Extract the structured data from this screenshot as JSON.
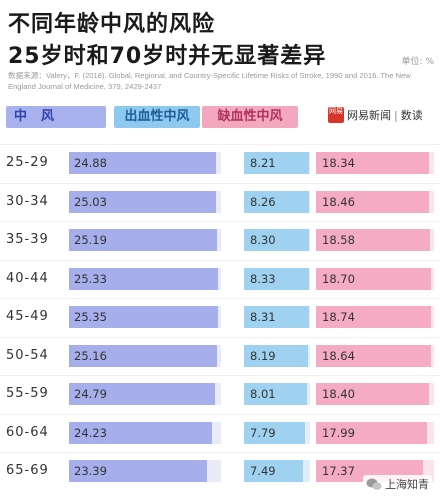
{
  "title_line1": "不同年龄中风的风险",
  "title_line2": "25岁时和70岁时并无显著差异",
  "unit": "单位: %",
  "source": "数据来源：Valery，F. (2018). Global, Regional, and Country-Specific Lifetime Risks of Stroke, 1990 and 2016. The New England Journal of Medicine, 379, 2429-2437",
  "headers": {
    "total": "中风",
    "hemorrhagic": "出血性中风",
    "ischemic": "缺血性中风"
  },
  "logo": {
    "badge": "网易",
    "name": "网易新闻",
    "column": "数读"
  },
  "watermark": "上海知青",
  "colors": {
    "total": "#a6aeeb",
    "hemorrhagic": "#9fd2f1",
    "ischemic": "#f5abc3"
  },
  "chart_data": {
    "type": "bar",
    "categories": [
      "25-29",
      "30-34",
      "35-39",
      "40-44",
      "45-49",
      "50-54",
      "55-59",
      "60-64",
      "65-69"
    ],
    "series": [
      {
        "name": "中风",
        "values": [
          24.88,
          25.03,
          25.19,
          25.33,
          25.35,
          25.16,
          24.79,
          24.23,
          23.39
        ]
      },
      {
        "name": "出血性中风",
        "values": [
          8.21,
          8.26,
          8.3,
          8.33,
          8.31,
          8.19,
          8.01,
          7.79,
          7.49
        ]
      },
      {
        "name": "缺血性中风",
        "values": [
          18.34,
          18.46,
          18.58,
          18.7,
          18.74,
          18.64,
          18.4,
          17.99,
          17.37
        ]
      }
    ],
    "value_labels": {
      "total": [
        "24.88",
        "25.03",
        "25.19",
        "25.33",
        "25.35",
        "25.16",
        "24.79",
        "24.23",
        "23.39"
      ],
      "hemorrhagic": [
        "8.21",
        "8.26",
        "8.30",
        "8.33",
        "8.31",
        "8.19",
        "8.01",
        "7.79",
        "7.49"
      ],
      "ischemic": [
        "18.34",
        "18.46",
        "18.58",
        "18.70",
        "18.74",
        "18.64",
        "18.40",
        "17.99",
        "17.37"
      ]
    },
    "unit": "%"
  }
}
